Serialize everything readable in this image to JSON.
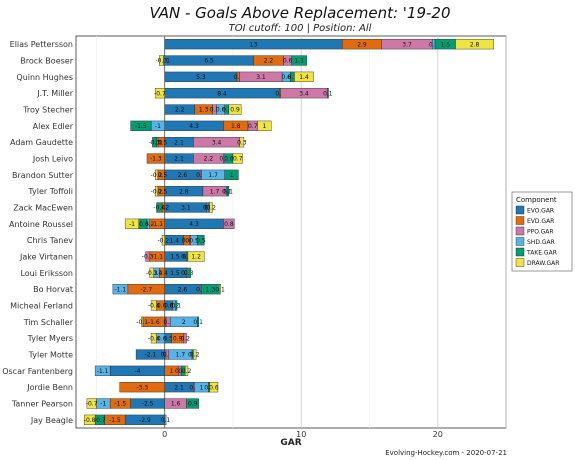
{
  "chart_data": {
    "type": "bar",
    "orientation": "horizontal",
    "stacked": true,
    "title": "VAN - Goals Above Replacement: '19-20",
    "subtitle": "TOI cutoff: 100 | Position: All",
    "xlabel": "GAR",
    "xlim": [
      -6.5,
      25
    ],
    "xticks": [
      0,
      10,
      20
    ],
    "grid": true,
    "legend_title": "Component",
    "legend_position": "right",
    "caption": "Evolving-Hockey.com - 2020-07-21",
    "components": [
      "EVO.GAR",
      "EVD.GAR",
      "PPO.GAR",
      "SHD.GAR",
      "TAKE.GAR",
      "DRAW.GAR"
    ],
    "colors": {
      "EVO.GAR": "#1f77b4",
      "EVD.GAR": "#e06c0f",
      "PPO.GAR": "#cc79a7",
      "SHD.GAR": "#56b4e9",
      "TAKE.GAR": "#009e73",
      "DRAW.GAR": "#f0e442"
    },
    "players": [
      {
        "name": "Elias Pettersson",
        "values": [
          13,
          2.9,
          3.7,
          0.2,
          1.5,
          2.8
        ]
      },
      {
        "name": "Brock Boeser",
        "values": [
          6.5,
          2.2,
          0.6,
          -0.1,
          1.1,
          -0.3
        ]
      },
      {
        "name": "Quinn Hughes",
        "values": [
          5.3,
          0.2,
          3.1,
          0.6,
          0.3,
          1.4
        ]
      },
      {
        "name": "J.T. Miller",
        "values": [
          8.4,
          0.1,
          3.4,
          0,
          0.1,
          -0.7
        ]
      },
      {
        "name": "Troy Stecher",
        "values": [
          2.2,
          1.3,
          0.3,
          0.6,
          0.3,
          0.9
        ]
      },
      {
        "name": "Alex Edler",
        "values": [
          4.3,
          1.8,
          0.7,
          -1,
          -1.5,
          1
        ]
      },
      {
        "name": "Adam Gaudette",
        "values": [
          2.1,
          -0.5,
          3.4,
          -0.1,
          -0.3,
          0.3
        ]
      },
      {
        "name": "Josh Leivo",
        "values": [
          2.1,
          -1.3,
          2.2,
          0.1,
          0.6,
          0.7
        ]
      },
      {
        "name": "Brandon Sutter",
        "values": [
          2.6,
          -0.5,
          0.1,
          1.7,
          1,
          -0.2
        ]
      },
      {
        "name": "Tyler Toffoli",
        "values": [
          2.8,
          -0.5,
          1.7,
          0.1,
          0.1,
          -0.2
        ]
      },
      {
        "name": "Zack MacEwen",
        "values": [
          3.1,
          -0.2,
          0.1,
          0.1,
          -0.4,
          0.2
        ]
      },
      {
        "name": "Antoine Roussel",
        "values": [
          4.3,
          -1.1,
          0.8,
          -0.2,
          -0.6,
          -1
        ]
      },
      {
        "name": "Chris Tanev",
        "values": [
          1.4,
          0.4,
          0.1,
          0.5,
          0.5,
          -0.2
        ]
      },
      {
        "name": "Jake Virtanen",
        "values": [
          1.5,
          -1.1,
          -0.3,
          0.1,
          0.1,
          1.2
        ]
      },
      {
        "name": "Loui Eriksson",
        "values": [
          1.5,
          -0.4,
          0.1,
          -0.4,
          0.3,
          -0.3
        ]
      },
      {
        "name": "Bo Horvat",
        "values": [
          2.6,
          -2.7,
          0.1,
          -1.1,
          1.3,
          0.1
        ]
      },
      {
        "name": "Micheal Ferland",
        "values": [
          0.6,
          -0.6,
          0,
          0.2,
          0.1,
          -0.4
        ]
      },
      {
        "name": "Tim Schaller",
        "values": [
          0.1,
          -1.6,
          0.3,
          2,
          0.1,
          -0.1
        ]
      },
      {
        "name": "Tyler Myers",
        "values": [
          0.5,
          0.9,
          0.2,
          -0.6,
          0,
          -0.4
        ]
      },
      {
        "name": "Tyler Motte",
        "values": [
          -2.1,
          0.1,
          0.2,
          1.7,
          0.1,
          0.2
        ]
      },
      {
        "name": "Oscar Fantenberg",
        "values": [
          -4,
          1,
          0.2,
          -1.1,
          0.3,
          0.2
        ]
      },
      {
        "name": "Jordie Benn",
        "values": [
          2.1,
          -3.3,
          0.1,
          1,
          0.1,
          0.6
        ]
      },
      {
        "name": "Tanner Pearson",
        "values": [
          -2.5,
          -1.5,
          1.6,
          -1,
          0.9,
          -0.7
        ]
      },
      {
        "name": "Jay Beagle",
        "values": [
          -2.9,
          -1.5,
          0,
          0.1,
          -0.7,
          -0.8
        ]
      }
    ]
  }
}
